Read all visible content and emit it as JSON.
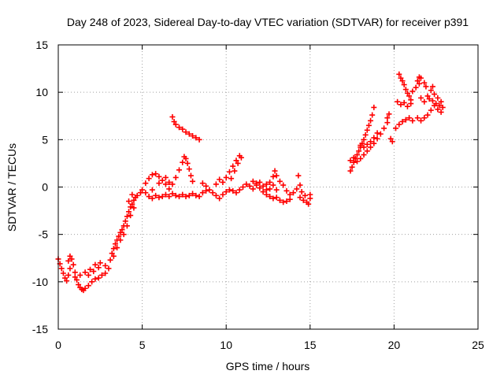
{
  "chart_data": {
    "type": "scatter",
    "title": "Day 248 of 2023, Sidereal Day-to-day VTEC variation (SDTVAR) for receiver p391",
    "xlabel": "GPS time / hours",
    "ylabel": "SDTVAR / TECUs",
    "xlim": [
      0,
      25
    ],
    "ylim": [
      -15,
      15
    ],
    "xticks": [
      0,
      5,
      10,
      15,
      20,
      25
    ],
    "yticks": [
      -15,
      -10,
      -5,
      0,
      5,
      10,
      15
    ],
    "grid": true,
    "marker": "plus",
    "colors": {
      "points": "#ff0000",
      "grid": "#a0a0a0",
      "axis": "#000000"
    },
    "series": [
      {
        "values": [
          {
            "x": 0.0,
            "y": -7.6
          },
          {
            "x": 0.1,
            "y": -8.1
          },
          {
            "x": 0.2,
            "y": -8.6
          },
          {
            "x": 0.3,
            "y": -9.1
          },
          {
            "x": 0.4,
            "y": -9.6
          },
          {
            "x": 0.5,
            "y": -9.9
          },
          {
            "x": 0.6,
            "y": -9.3
          },
          {
            "x": 0.7,
            "y": -8.6
          },
          {
            "x": 0.6,
            "y": -7.8
          },
          {
            "x": 0.7,
            "y": -7.3
          },
          {
            "x": 0.8,
            "y": -7.6
          },
          {
            "x": 0.9,
            "y": -8.2
          },
          {
            "x": 1.0,
            "y": -9.0
          },
          {
            "x": 1.1,
            "y": -9.8
          },
          {
            "x": 1.2,
            "y": -10.3
          },
          {
            "x": 1.3,
            "y": -10.6
          },
          {
            "x": 1.4,
            "y": -10.8
          },
          {
            "x": 1.5,
            "y": -10.9
          },
          {
            "x": 1.6,
            "y": -10.7
          },
          {
            "x": 1.8,
            "y": -10.4
          },
          {
            "x": 2.0,
            "y": -10.0
          },
          {
            "x": 2.2,
            "y": -9.7
          },
          {
            "x": 2.4,
            "y": -9.6
          },
          {
            "x": 2.6,
            "y": -9.3
          },
          {
            "x": 2.8,
            "y": -9.1
          },
          {
            "x": 1.0,
            "y": -9.5
          },
          {
            "x": 1.3,
            "y": -9.3
          },
          {
            "x": 1.6,
            "y": -9.0
          },
          {
            "x": 1.9,
            "y": -8.7
          },
          {
            "x": 2.2,
            "y": -8.2
          },
          {
            "x": 2.5,
            "y": -8.0
          },
          {
            "x": 2.8,
            "y": -8.3
          },
          {
            "x": 2.4,
            "y": -8.5
          },
          {
            "x": 2.1,
            "y": -8.9
          },
          {
            "x": 1.8,
            "y": -9.3
          },
          {
            "x": 3.0,
            "y": -8.6
          },
          {
            "x": 3.1,
            "y": -7.7
          },
          {
            "x": 3.2,
            "y": -7.0
          },
          {
            "x": 3.3,
            "y": -6.5
          },
          {
            "x": 3.4,
            "y": -6.0
          },
          {
            "x": 3.5,
            "y": -5.6
          },
          {
            "x": 3.6,
            "y": -5.2
          },
          {
            "x": 3.7,
            "y": -4.8
          },
          {
            "x": 3.8,
            "y": -4.5
          },
          {
            "x": 3.9,
            "y": -4.1
          },
          {
            "x": 4.0,
            "y": -3.6
          },
          {
            "x": 4.1,
            "y": -3.1
          },
          {
            "x": 4.2,
            "y": -2.6
          },
          {
            "x": 4.3,
            "y": -2.1
          },
          {
            "x": 4.4,
            "y": -1.8
          },
          {
            "x": 4.5,
            "y": -1.4
          },
          {
            "x": 4.6,
            "y": -1.1
          },
          {
            "x": 4.7,
            "y": -0.9
          },
          {
            "x": 4.9,
            "y": -0.6
          },
          {
            "x": 3.3,
            "y": -7.3
          },
          {
            "x": 3.5,
            "y": -6.4
          },
          {
            "x": 3.7,
            "y": -5.6
          },
          {
            "x": 3.9,
            "y": -5.0
          },
          {
            "x": 4.1,
            "y": -4.1
          },
          {
            "x": 4.3,
            "y": -3.0
          },
          {
            "x": 4.5,
            "y": -2.2
          },
          {
            "x": 4.2,
            "y": -1.5
          },
          {
            "x": 4.4,
            "y": -0.8
          },
          {
            "x": 5.0,
            "y": -0.3
          },
          {
            "x": 5.2,
            "y": -0.6
          },
          {
            "x": 5.4,
            "y": -1.0
          },
          {
            "x": 5.6,
            "y": -1.2
          },
          {
            "x": 5.8,
            "y": -0.9
          },
          {
            "x": 6.0,
            "y": -1.1
          },
          {
            "x": 6.2,
            "y": -1.0
          },
          {
            "x": 6.4,
            "y": -0.8
          },
          {
            "x": 6.6,
            "y": -1.0
          },
          {
            "x": 6.8,
            "y": -0.7
          },
          {
            "x": 7.0,
            "y": -0.9
          },
          {
            "x": 7.2,
            "y": -1.0
          },
          {
            "x": 7.4,
            "y": -0.8
          },
          {
            "x": 7.6,
            "y": -1.0
          },
          {
            "x": 7.8,
            "y": -0.9
          },
          {
            "x": 8.0,
            "y": -0.7
          },
          {
            "x": 8.2,
            "y": -0.9
          },
          {
            "x": 8.4,
            "y": -1.0
          },
          {
            "x": 8.6,
            "y": -0.6
          },
          {
            "x": 8.8,
            "y": -0.4
          },
          {
            "x": 9.0,
            "y": -0.3
          },
          {
            "x": 5.2,
            "y": 0.4
          },
          {
            "x": 5.4,
            "y": 0.9
          },
          {
            "x": 5.6,
            "y": 1.3
          },
          {
            "x": 5.8,
            "y": 1.4
          },
          {
            "x": 6.0,
            "y": 1.1
          },
          {
            "x": 6.2,
            "y": 0.7
          },
          {
            "x": 6.4,
            "y": 0.3
          },
          {
            "x": 6.6,
            "y": -0.2
          },
          {
            "x": 6.8,
            "y": 0.3
          },
          {
            "x": 7.0,
            "y": 1.0
          },
          {
            "x": 7.2,
            "y": 1.8
          },
          {
            "x": 7.4,
            "y": 2.6
          },
          {
            "x": 7.5,
            "y": 3.2
          },
          {
            "x": 7.6,
            "y": 3.0
          },
          {
            "x": 7.7,
            "y": 2.5
          },
          {
            "x": 7.8,
            "y": 1.9
          },
          {
            "x": 7.9,
            "y": 1.2
          },
          {
            "x": 8.0,
            "y": 0.6
          },
          {
            "x": 5.6,
            "y": -0.3
          },
          {
            "x": 6.0,
            "y": 0.4
          },
          {
            "x": 6.4,
            "y": 1.0
          },
          {
            "x": 6.6,
            "y": 0.5
          },
          {
            "x": 6.8,
            "y": 7.4
          },
          {
            "x": 6.9,
            "y": 6.9
          },
          {
            "x": 7.0,
            "y": 6.6
          },
          {
            "x": 7.2,
            "y": 6.3
          },
          {
            "x": 7.4,
            "y": 6.1
          },
          {
            "x": 7.6,
            "y": 5.8
          },
          {
            "x": 7.8,
            "y": 5.6
          },
          {
            "x": 8.0,
            "y": 5.4
          },
          {
            "x": 8.2,
            "y": 5.2
          },
          {
            "x": 8.4,
            "y": 5.0
          },
          {
            "x": 8.6,
            "y": 0.4
          },
          {
            "x": 8.8,
            "y": 0.1
          },
          {
            "x": 9.2,
            "y": -0.6
          },
          {
            "x": 9.4,
            "y": -0.9
          },
          {
            "x": 9.6,
            "y": -1.2
          },
          {
            "x": 9.8,
            "y": -0.8
          },
          {
            "x": 10.0,
            "y": -0.5
          },
          {
            "x": 10.2,
            "y": -0.3
          },
          {
            "x": 9.4,
            "y": 0.3
          },
          {
            "x": 9.6,
            "y": 0.8
          },
          {
            "x": 9.8,
            "y": 0.5
          },
          {
            "x": 10.0,
            "y": 1.0
          },
          {
            "x": 10.2,
            "y": 1.6
          },
          {
            "x": 10.4,
            "y": 2.2
          },
          {
            "x": 10.6,
            "y": 2.8
          },
          {
            "x": 10.8,
            "y": 3.3
          },
          {
            "x": 10.9,
            "y": 3.1
          },
          {
            "x": 10.7,
            "y": 2.5
          },
          {
            "x": 10.5,
            "y": 1.7
          },
          {
            "x": 10.3,
            "y": 0.9
          },
          {
            "x": 10.4,
            "y": -0.4
          },
          {
            "x": 10.6,
            "y": -0.6
          },
          {
            "x": 10.8,
            "y": -0.3
          },
          {
            "x": 11.0,
            "y": 0.0
          },
          {
            "x": 11.2,
            "y": 0.3
          },
          {
            "x": 11.4,
            "y": 0.1
          },
          {
            "x": 11.6,
            "y": -0.2
          },
          {
            "x": 11.8,
            "y": 0.4
          },
          {
            "x": 12.0,
            "y": -0.1
          },
          {
            "x": 12.2,
            "y": -0.5
          },
          {
            "x": 12.4,
            "y": -0.8
          },
          {
            "x": 12.6,
            "y": -1.0
          },
          {
            "x": 12.8,
            "y": -1.2
          },
          {
            "x": 13.0,
            "y": -1.1
          },
          {
            "x": 13.2,
            "y": -1.4
          },
          {
            "x": 13.4,
            "y": -1.6
          },
          {
            "x": 13.6,
            "y": -1.5
          },
          {
            "x": 13.8,
            "y": -1.3
          },
          {
            "x": 11.6,
            "y": 0.6
          },
          {
            "x": 11.8,
            "y": 0.2
          },
          {
            "x": 12.0,
            "y": 0.5
          },
          {
            "x": 12.2,
            "y": 0.1
          },
          {
            "x": 12.4,
            "y": 0.3
          },
          {
            "x": 12.6,
            "y": -0.2
          },
          {
            "x": 12.8,
            "y": 0.2
          },
          {
            "x": 13.0,
            "y": -0.3
          },
          {
            "x": 12.4,
            "y": -0.3
          },
          {
            "x": 12.6,
            "y": 0.5
          },
          {
            "x": 12.8,
            "y": 1.1
          },
          {
            "x": 12.9,
            "y": 1.7
          },
          {
            "x": 13.0,
            "y": 1.2
          },
          {
            "x": 13.2,
            "y": 0.6
          },
          {
            "x": 13.4,
            "y": 0.2
          },
          {
            "x": 13.6,
            "y": -0.4
          },
          {
            "x": 13.8,
            "y": -0.8
          },
          {
            "x": 14.0,
            "y": -0.6
          },
          {
            "x": 14.2,
            "y": -0.2
          },
          {
            "x": 14.4,
            "y": 0.2
          },
          {
            "x": 14.3,
            "y": 1.2
          },
          {
            "x": 14.4,
            "y": -1.1
          },
          {
            "x": 14.6,
            "y": -1.4
          },
          {
            "x": 14.8,
            "y": -1.6
          },
          {
            "x": 15.0,
            "y": -1.2
          },
          {
            "x": 15.0,
            "y": -0.8
          },
          {
            "x": 14.9,
            "y": -1.8
          },
          {
            "x": 14.7,
            "y": -0.9
          },
          {
            "x": 14.5,
            "y": -0.5
          },
          {
            "x": 17.4,
            "y": 1.7
          },
          {
            "x": 17.5,
            "y": 2.1
          },
          {
            "x": 17.6,
            "y": 2.6
          },
          {
            "x": 17.7,
            "y": 3.0
          },
          {
            "x": 17.8,
            "y": 3.4
          },
          {
            "x": 17.9,
            "y": 3.8
          },
          {
            "x": 18.0,
            "y": 4.2
          },
          {
            "x": 18.1,
            "y": 4.6
          },
          {
            "x": 18.2,
            "y": 5.0
          },
          {
            "x": 18.3,
            "y": 5.5
          },
          {
            "x": 18.4,
            "y": 6.0
          },
          {
            "x": 18.5,
            "y": 6.5
          },
          {
            "x": 18.6,
            "y": 7.0
          },
          {
            "x": 18.7,
            "y": 7.6
          },
          {
            "x": 18.8,
            "y": 8.4
          },
          {
            "x": 17.4,
            "y": 2.8
          },
          {
            "x": 17.6,
            "y": 3.1
          },
          {
            "x": 17.8,
            "y": 2.7
          },
          {
            "x": 18.0,
            "y": 3.0
          },
          {
            "x": 18.2,
            "y": 3.4
          },
          {
            "x": 18.4,
            "y": 3.8
          },
          {
            "x": 18.6,
            "y": 4.2
          },
          {
            "x": 18.8,
            "y": 4.6
          },
          {
            "x": 19.0,
            "y": 5.1
          },
          {
            "x": 19.2,
            "y": 5.6
          },
          {
            "x": 19.4,
            "y": 6.2
          },
          {
            "x": 19.6,
            "y": 6.8
          },
          {
            "x": 18.0,
            "y": 4.4
          },
          {
            "x": 18.2,
            "y": 4.2
          },
          {
            "x": 18.4,
            "y": 4.5
          },
          {
            "x": 18.6,
            "y": 4.8
          },
          {
            "x": 18.8,
            "y": 5.2
          },
          {
            "x": 19.0,
            "y": 5.7
          },
          {
            "x": 19.6,
            "y": 7.3
          },
          {
            "x": 19.7,
            "y": 7.7
          },
          {
            "x": 19.8,
            "y": 5.1
          },
          {
            "x": 19.9,
            "y": 4.8
          },
          {
            "x": 20.1,
            "y": 6.2
          },
          {
            "x": 20.3,
            "y": 6.6
          },
          {
            "x": 20.5,
            "y": 6.9
          },
          {
            "x": 20.7,
            "y": 7.1
          },
          {
            "x": 20.9,
            "y": 7.3
          },
          {
            "x": 21.1,
            "y": 7.0
          },
          {
            "x": 20.2,
            "y": 9.0
          },
          {
            "x": 20.4,
            "y": 8.7
          },
          {
            "x": 20.6,
            "y": 8.9
          },
          {
            "x": 20.8,
            "y": 8.5
          },
          {
            "x": 21.0,
            "y": 8.8
          },
          {
            "x": 20.3,
            "y": 11.9
          },
          {
            "x": 20.4,
            "y": 11.5
          },
          {
            "x": 20.5,
            "y": 11.2
          },
          {
            "x": 20.6,
            "y": 10.8
          },
          {
            "x": 20.7,
            "y": 10.3
          },
          {
            "x": 20.8,
            "y": 9.9
          },
          {
            "x": 20.9,
            "y": 9.6
          },
          {
            "x": 21.0,
            "y": 9.2
          },
          {
            "x": 21.4,
            "y": 11.2
          },
          {
            "x": 21.5,
            "y": 11.6
          },
          {
            "x": 21.6,
            "y": 11.5
          },
          {
            "x": 21.5,
            "y": 10.9
          },
          {
            "x": 21.3,
            "y": 10.5
          },
          {
            "x": 21.1,
            "y": 10.1
          },
          {
            "x": 21.6,
            "y": 9.4
          },
          {
            "x": 21.8,
            "y": 9.0
          },
          {
            "x": 22.0,
            "y": 9.6
          },
          {
            "x": 22.2,
            "y": 10.2
          },
          {
            "x": 22.3,
            "y": 10.6
          },
          {
            "x": 22.4,
            "y": 9.8
          },
          {
            "x": 22.6,
            "y": 9.4
          },
          {
            "x": 22.8,
            "y": 9.0
          },
          {
            "x": 22.9,
            "y": 8.4
          },
          {
            "x": 22.8,
            "y": 7.9
          },
          {
            "x": 22.6,
            "y": 8.2
          },
          {
            "x": 22.4,
            "y": 8.6
          },
          {
            "x": 22.2,
            "y": 8.1
          },
          {
            "x": 22.0,
            "y": 7.6
          },
          {
            "x": 21.8,
            "y": 7.3
          },
          {
            "x": 21.6,
            "y": 7.0
          },
          {
            "x": 21.4,
            "y": 7.3
          },
          {
            "x": 22.1,
            "y": 9.3
          },
          {
            "x": 22.3,
            "y": 9.1
          },
          {
            "x": 22.5,
            "y": 8.8
          },
          {
            "x": 22.7,
            "y": 8.6
          },
          {
            "x": 21.8,
            "y": 11.0
          },
          {
            "x": 21.9,
            "y": 10.6
          }
        ]
      }
    ]
  }
}
